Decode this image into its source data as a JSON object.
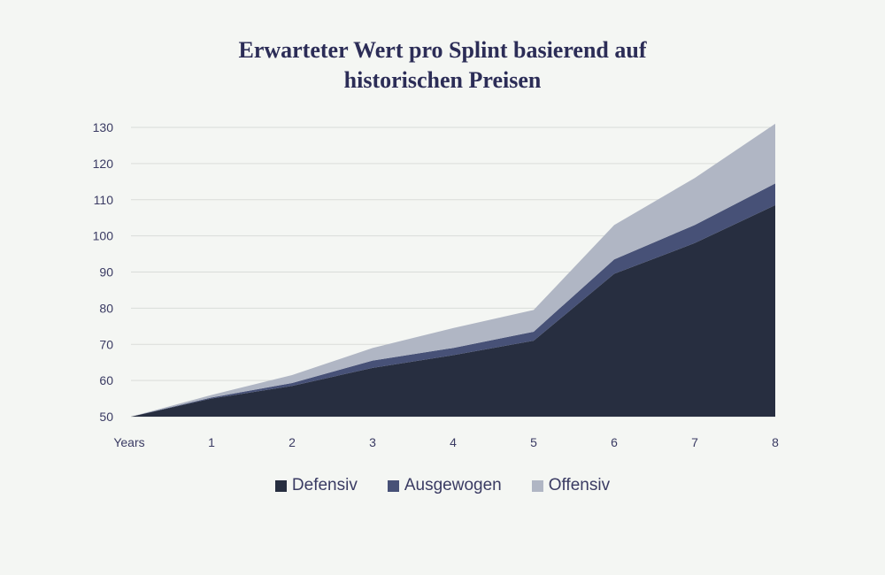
{
  "chart_data": {
    "type": "area",
    "stacked": true,
    "title": "Erwarteter Wert pro Splint basierend auf\nhistorischen Preisen",
    "x_label_first": "Years",
    "categories": [
      "Years",
      "1",
      "2",
      "3",
      "4",
      "5",
      "6",
      "7",
      "8"
    ],
    "x": [
      0,
      1,
      2,
      3,
      4,
      5,
      6,
      7,
      8
    ],
    "ylim": [
      50,
      130
    ],
    "yticks": [
      50,
      60,
      70,
      80,
      90,
      100,
      110,
      120,
      130
    ],
    "grid": true,
    "legend_position": "bottom",
    "series": [
      {
        "name": "Defensiv",
        "color": "#272e40",
        "totals": [
          50,
          55,
          58.5,
          63.5,
          67,
          71,
          89.5,
          98,
          108.5
        ]
      },
      {
        "name": "Ausgewogen",
        "color": "#475177",
        "totals": [
          50,
          55.3,
          59.3,
          65.5,
          69,
          73.5,
          93.5,
          103,
          114.5
        ]
      },
      {
        "name": "Offensiv",
        "color": "#b0b6c4",
        "totals": [
          50,
          56,
          61.5,
          69,
          74.5,
          79.5,
          103,
          116,
          131
        ]
      }
    ]
  }
}
